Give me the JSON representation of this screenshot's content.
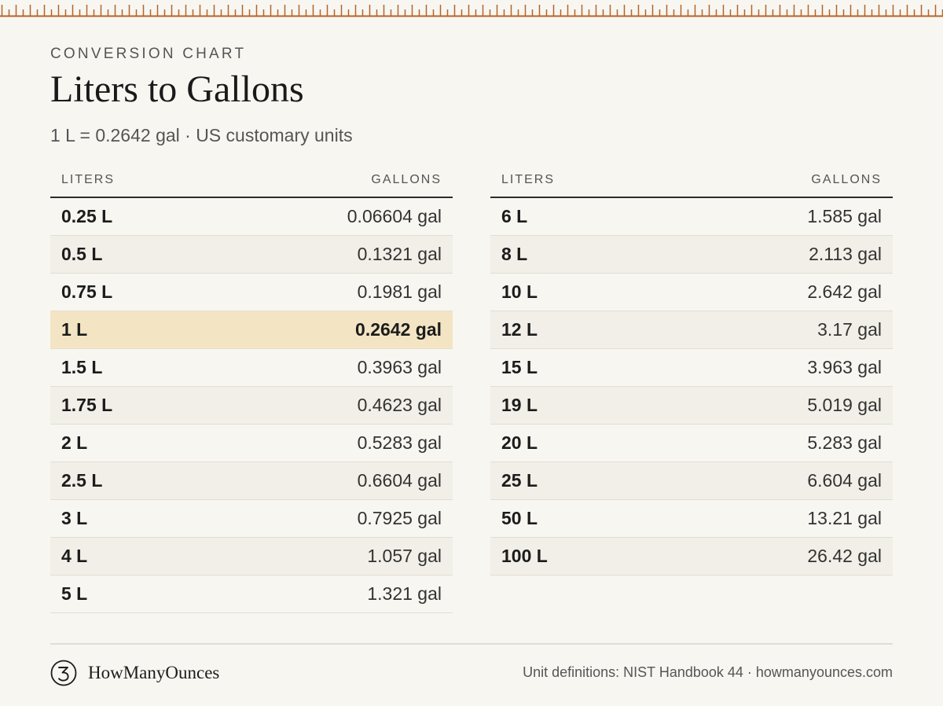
{
  "header": {
    "eyebrow": "CONVERSION CHART",
    "title": "Liters to Gallons",
    "subtitle": "1 L = 0.2642 gal · US customary units"
  },
  "tables": [
    {
      "headers": {
        "liters": "LITERS",
        "gallons": "GALLONS"
      },
      "rows": [
        {
          "liters": "0.25 L",
          "gallons": "0.06604 gal"
        },
        {
          "liters": "0.5 L",
          "gallons": "0.1321 gal"
        },
        {
          "liters": "0.75 L",
          "gallons": "0.1981 gal"
        },
        {
          "liters": "1 L",
          "gallons": "0.2642 gal",
          "highlighted": true
        },
        {
          "liters": "1.5 L",
          "gallons": "0.3963 gal"
        },
        {
          "liters": "1.75 L",
          "gallons": "0.4623 gal"
        },
        {
          "liters": "2 L",
          "gallons": "0.5283 gal"
        },
        {
          "liters": "2.5 L",
          "gallons": "0.6604 gal"
        },
        {
          "liters": "3 L",
          "gallons": "0.7925 gal"
        },
        {
          "liters": "4 L",
          "gallons": "1.057 gal"
        },
        {
          "liters": "5 L",
          "gallons": "1.321 gal"
        }
      ]
    },
    {
      "headers": {
        "liters": "LITERS",
        "gallons": "GALLONS"
      },
      "rows": [
        {
          "liters": "6 L",
          "gallons": "1.585 gal"
        },
        {
          "liters": "8 L",
          "gallons": "2.113 gal"
        },
        {
          "liters": "10 L",
          "gallons": "2.642 gal"
        },
        {
          "liters": "12 L",
          "gallons": "3.17 gal"
        },
        {
          "liters": "15 L",
          "gallons": "3.963 gal"
        },
        {
          "liters": "19 L",
          "gallons": "5.019 gal"
        },
        {
          "liters": "20 L",
          "gallons": "5.283 gal"
        },
        {
          "liters": "25 L",
          "gallons": "6.604 gal"
        },
        {
          "liters": "50 L",
          "gallons": "13.21 gal"
        },
        {
          "liters": "100 L",
          "gallons": "26.42 gal"
        }
      ]
    }
  ],
  "footer": {
    "brand_name": "HowManyOunces",
    "logo_icon": "numeral-three-logo-icon",
    "source": "Unit definitions: NIST Handbook 44 · howmanyounces.com"
  },
  "colors": {
    "ruler": "#b5642c",
    "highlight": "#f3e5c4",
    "background": "#f8f6f1"
  }
}
